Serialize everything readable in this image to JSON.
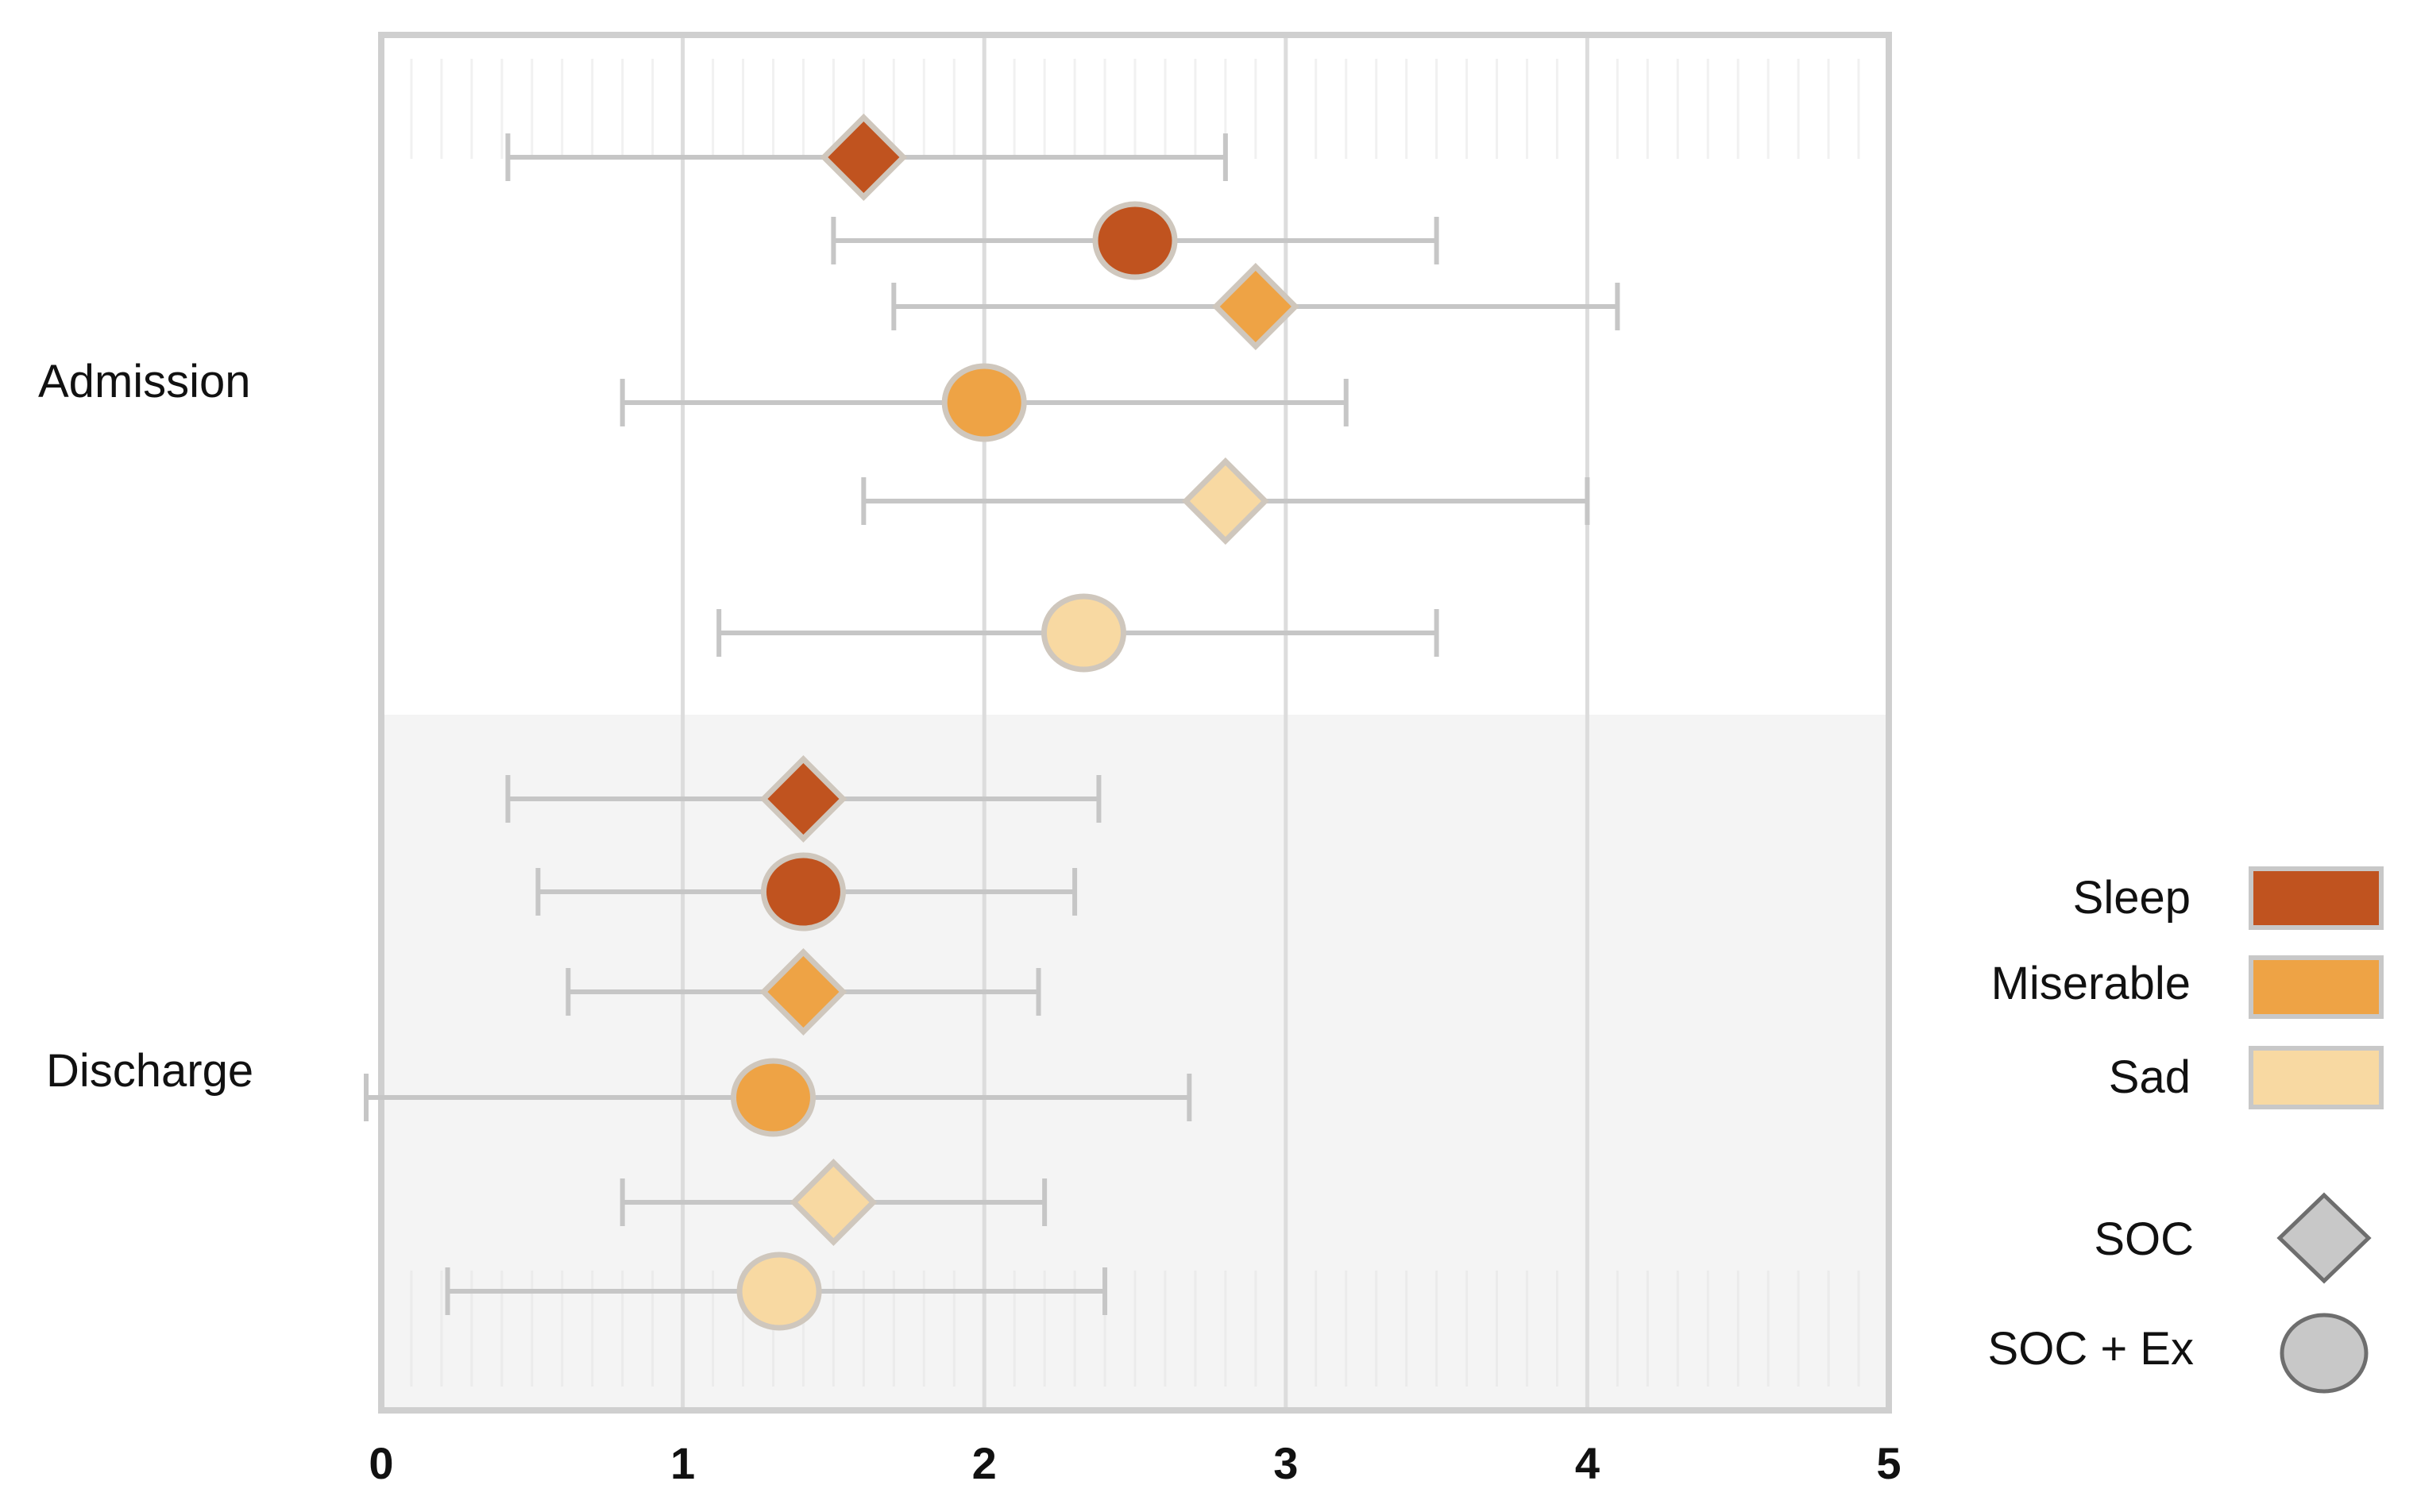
{
  "chart_data": {
    "type": "forest",
    "title": "",
    "xlabel": "",
    "ylabel": "",
    "xlim": [
      0,
      5
    ],
    "x_ticks": [
      "0",
      "1",
      "2",
      "3",
      "4",
      "5"
    ],
    "grid": true,
    "legend_position": "bottom-right",
    "groups": [
      {
        "label": "Admission",
        "rows": [
          {
            "measure": "Sleep",
            "condition": "SOC",
            "value": 1.6,
            "lower": 0.42,
            "upper": 2.8
          },
          {
            "measure": "Sleep",
            "condition": "SOC + Ex",
            "value": 2.5,
            "lower": 1.5,
            "upper": 3.5
          },
          {
            "measure": "Miserable",
            "condition": "SOC",
            "value": 2.9,
            "lower": 1.7,
            "upper": 4.1
          },
          {
            "measure": "Miserable",
            "condition": "SOC + Ex",
            "value": 2.0,
            "lower": 0.8,
            "upper": 3.2
          },
          {
            "measure": "Sad",
            "condition": "SOC",
            "value": 2.8,
            "lower": 1.6,
            "upper": 4.0
          },
          {
            "measure": "Sad",
            "condition": "SOC + Ex",
            "value": 2.33,
            "lower": 1.12,
            "upper": 3.5
          }
        ]
      },
      {
        "label": "Discharge",
        "rows": [
          {
            "measure": "Sleep",
            "condition": "SOC",
            "value": 1.4,
            "lower": 0.42,
            "upper": 2.38
          },
          {
            "measure": "Sleep",
            "condition": "SOC + Ex",
            "value": 1.4,
            "lower": 0.52,
            "upper": 2.3
          },
          {
            "measure": "Miserable",
            "condition": "SOC",
            "value": 1.4,
            "lower": 0.62,
            "upper": 2.18
          },
          {
            "measure": "Miserable",
            "condition": "SOC + Ex",
            "value": 1.3,
            "lower": -0.05,
            "upper": 2.68
          },
          {
            "measure": "Sad",
            "condition": "SOC",
            "value": 1.5,
            "lower": 0.8,
            "upper": 2.2
          },
          {
            "measure": "Sad",
            "condition": "SOC + Ex",
            "value": 1.32,
            "lower": 0.22,
            "upper": 2.4
          }
        ]
      }
    ],
    "legend": {
      "measures": [
        {
          "label": "Sleep",
          "color": "#c0531f"
        },
        {
          "label": "Miserable",
          "color": "#eea345"
        },
        {
          "label": "Sad",
          "color": "#f8d9a2"
        }
      ],
      "conditions": [
        {
          "label": "SOC",
          "shape": "diamond"
        },
        {
          "label": "SOC + Ex",
          "shape": "circle"
        }
      ]
    }
  }
}
